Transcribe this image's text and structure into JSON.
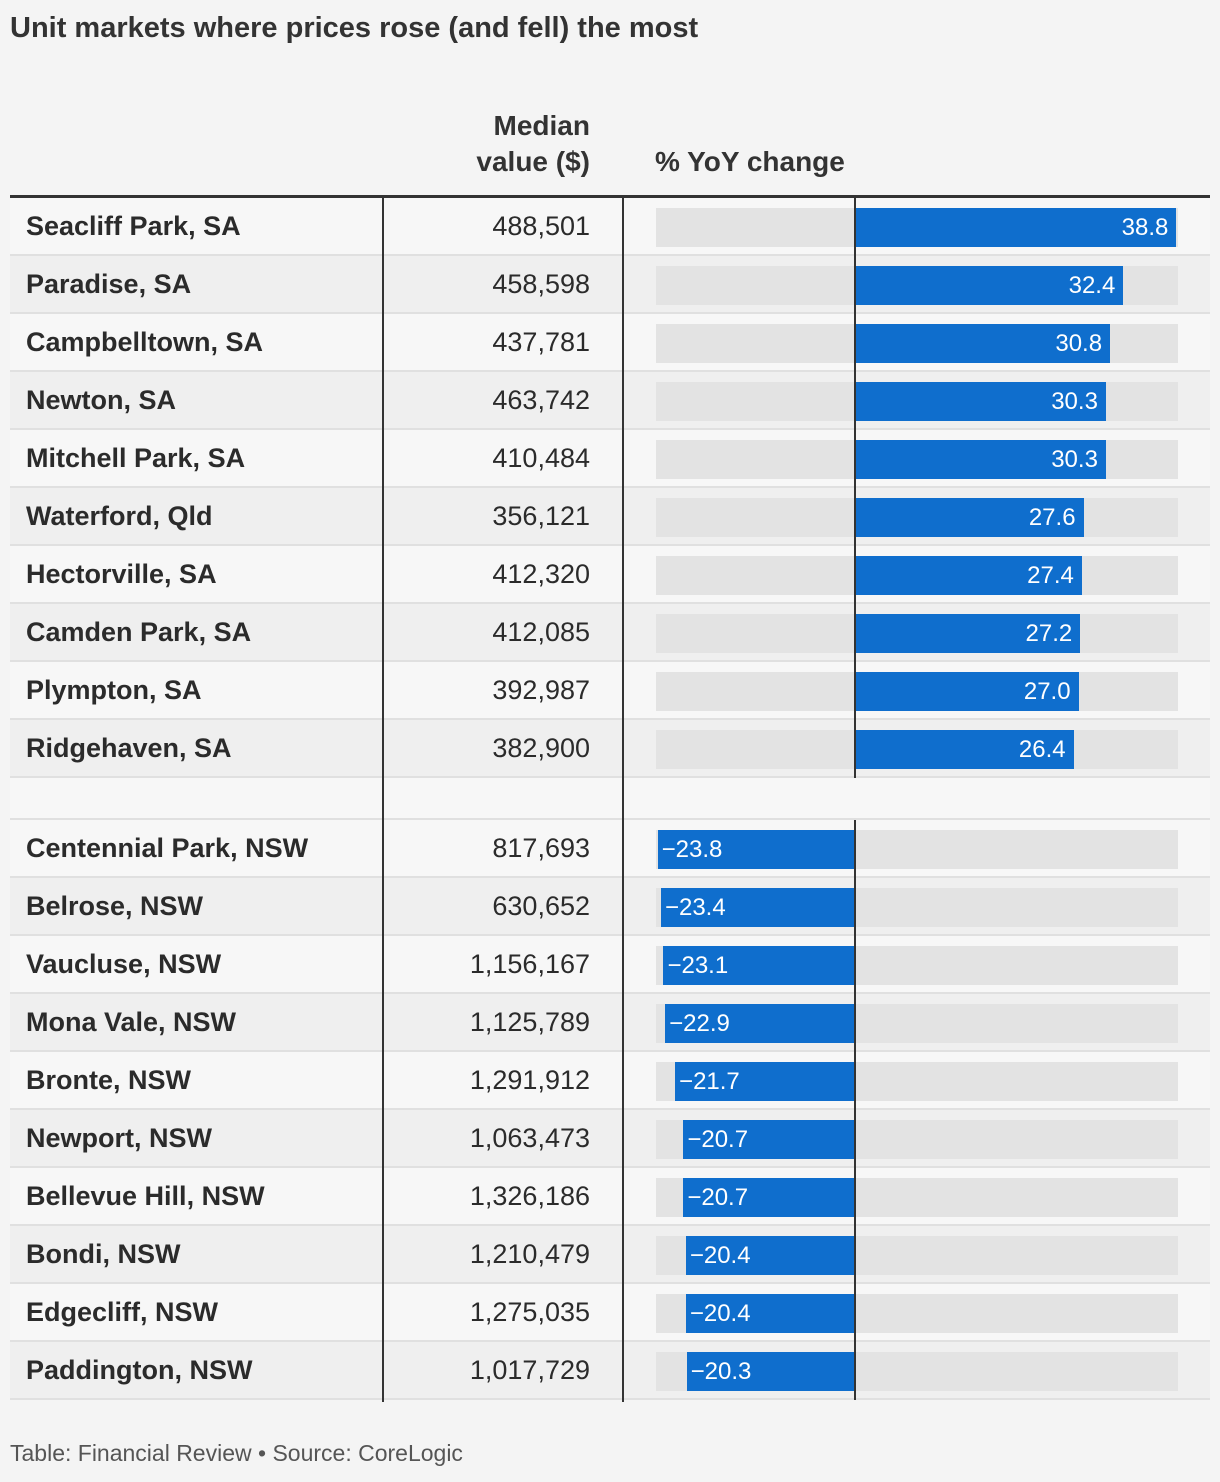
{
  "title": "Unit markets where prices rose (and fell) the most",
  "columns": {
    "median_line1": "Median",
    "median_line2": "value ($)",
    "change": "% YoY change"
  },
  "footer": "Table: Financial Review • Source: CoreLogic",
  "colors": {
    "bar": "#0f6ecd",
    "track": "#e3e3e3"
  },
  "chart_data": {
    "type": "table",
    "xlim": [
      -24,
      39
    ],
    "groups": [
      {
        "rows": [
          {
            "suburb": "Seacliff Park, SA",
            "median": "488,501",
            "change": 38.8,
            "label": "38.8"
          },
          {
            "suburb": "Paradise, SA",
            "median": "458,598",
            "change": 32.4,
            "label": "32.4"
          },
          {
            "suburb": "Campbelltown, SA",
            "median": "437,781",
            "change": 30.8,
            "label": "30.8"
          },
          {
            "suburb": "Newton, SA",
            "median": "463,742",
            "change": 30.3,
            "label": "30.3"
          },
          {
            "suburb": "Mitchell Park, SA",
            "median": "410,484",
            "change": 30.3,
            "label": "30.3"
          },
          {
            "suburb": "Waterford, Qld",
            "median": "356,121",
            "change": 27.6,
            "label": "27.6"
          },
          {
            "suburb": "Hectorville, SA",
            "median": "412,320",
            "change": 27.4,
            "label": "27.4"
          },
          {
            "suburb": "Camden Park, SA",
            "median": "412,085",
            "change": 27.2,
            "label": "27.2"
          },
          {
            "suburb": "Plympton, SA",
            "median": "392,987",
            "change": 27.0,
            "label": "27.0"
          },
          {
            "suburb": "Ridgehaven, SA",
            "median": "382,900",
            "change": 26.4,
            "label": "26.4"
          }
        ]
      },
      {
        "rows": [
          {
            "suburb": "Centennial Park, NSW",
            "median": "817,693",
            "change": -23.8,
            "label": "−23.8"
          },
          {
            "suburb": "Belrose, NSW",
            "median": "630,652",
            "change": -23.4,
            "label": "−23.4"
          },
          {
            "suburb": "Vaucluse, NSW",
            "median": "1,156,167",
            "change": -23.1,
            "label": "−23.1"
          },
          {
            "suburb": "Mona Vale, NSW",
            "median": "1,125,789",
            "change": -22.9,
            "label": "−22.9"
          },
          {
            "suburb": "Bronte, NSW",
            "median": "1,291,912",
            "change": -21.7,
            "label": "−21.7"
          },
          {
            "suburb": "Newport, NSW",
            "median": "1,063,473",
            "change": -20.7,
            "label": "−20.7"
          },
          {
            "suburb": "Bellevue Hill, NSW",
            "median": "1,326,186",
            "change": -20.7,
            "label": "−20.7"
          },
          {
            "suburb": "Bondi, NSW",
            "median": "1,210,479",
            "change": -20.4,
            "label": "−20.4"
          },
          {
            "suburb": "Edgecliff, NSW",
            "median": "1,275,035",
            "change": -20.4,
            "label": "−20.4"
          },
          {
            "suburb": "Paddington, NSW",
            "median": "1,017,729",
            "change": -20.3,
            "label": "−20.3"
          }
        ]
      }
    ]
  }
}
